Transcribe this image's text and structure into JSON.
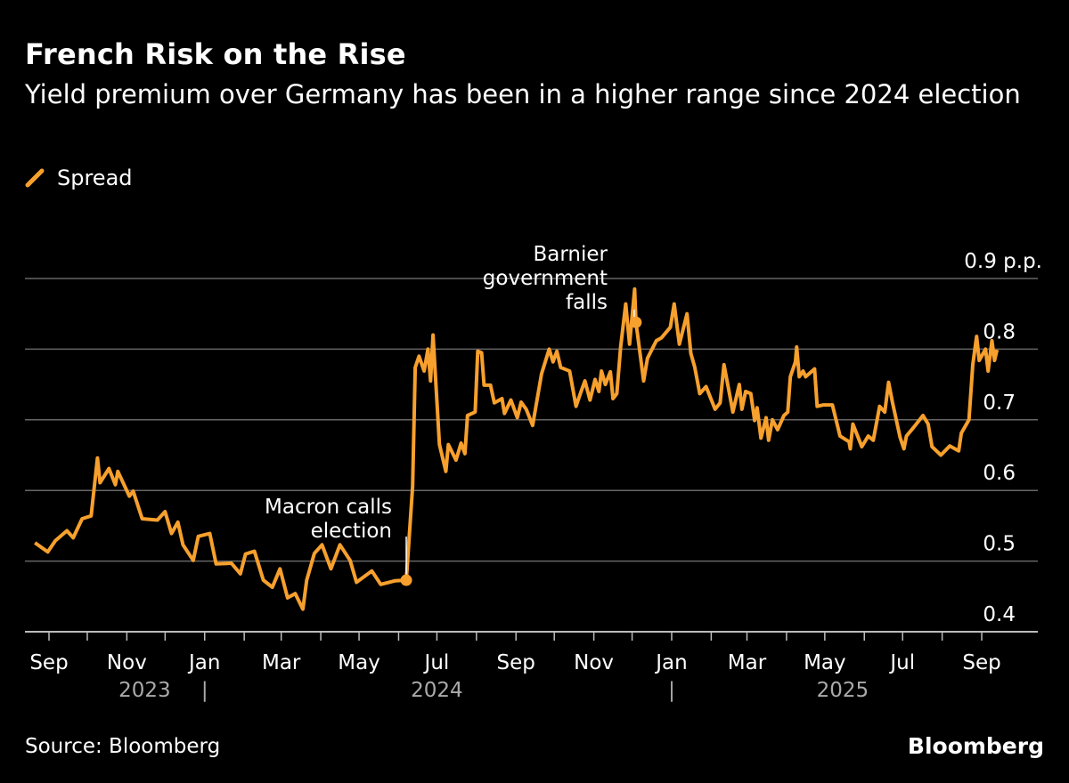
{
  "chart_data": {
    "type": "line",
    "title": "French Risk on the Rise",
    "subtitle": "Yield premium over Germany has been in a higher range since 2024 election",
    "legend": {
      "placement": "top-left",
      "entries": [
        "Spread"
      ]
    },
    "ylabel_unit": "p.p.",
    "ylim": [
      0.4,
      0.9
    ],
    "yticks": [
      {
        "value": 0.9,
        "label": "0.9 p.p."
      },
      {
        "value": 0.8,
        "label": "0.8"
      },
      {
        "value": 0.7,
        "label": "0.7"
      },
      {
        "value": 0.6,
        "label": "0.6"
      },
      {
        "value": 0.5,
        "label": "0.5"
      },
      {
        "value": 0.4,
        "label": "0.4"
      }
    ],
    "grid": true,
    "xticks": [
      {
        "date": "2023-09-01",
        "label": "Sep"
      },
      {
        "date": "2023-10-01",
        "label": ""
      },
      {
        "date": "2023-11-01",
        "label": "Nov"
      },
      {
        "date": "2023-12-01",
        "label": ""
      },
      {
        "date": "2024-01-01",
        "label": "Jan"
      },
      {
        "date": "2024-02-01",
        "label": ""
      },
      {
        "date": "2024-03-01",
        "label": "Mar"
      },
      {
        "date": "2024-04-01",
        "label": ""
      },
      {
        "date": "2024-05-01",
        "label": "May"
      },
      {
        "date": "2024-06-01",
        "label": ""
      },
      {
        "date": "2024-07-01",
        "label": "Jul"
      },
      {
        "date": "2024-08-01",
        "label": ""
      },
      {
        "date": "2024-09-01",
        "label": "Sep"
      },
      {
        "date": "2024-10-01",
        "label": ""
      },
      {
        "date": "2024-11-01",
        "label": "Nov"
      },
      {
        "date": "2024-12-01",
        "label": ""
      },
      {
        "date": "2025-01-01",
        "label": "Jan"
      },
      {
        "date": "2025-02-01",
        "label": ""
      },
      {
        "date": "2025-03-01",
        "label": "Mar"
      },
      {
        "date": "2025-04-01",
        "label": ""
      },
      {
        "date": "2025-05-01",
        "label": "May"
      },
      {
        "date": "2025-06-01",
        "label": ""
      },
      {
        "date": "2025-07-01",
        "label": "Jul"
      },
      {
        "date": "2025-08-01",
        "label": ""
      },
      {
        "date": "2025-09-01",
        "label": "Sep"
      }
    ],
    "years": [
      {
        "label": "2023",
        "date": "2023-11-15"
      },
      {
        "label": "2024",
        "date": "2024-07-01"
      },
      {
        "label": "2025",
        "date": "2025-05-15"
      }
    ],
    "year_separator": "|",
    "series": [
      {
        "name": "Spread",
        "color": "#F7A02D",
        "points": [
          [
            "2023-08-21",
            0.526
          ],
          [
            "2023-08-31",
            0.513
          ],
          [
            "2023-09-06",
            0.529
          ],
          [
            "2023-09-15",
            0.543
          ],
          [
            "2023-09-20",
            0.533
          ],
          [
            "2023-09-27",
            0.56
          ],
          [
            "2023-10-04",
            0.564
          ],
          [
            "2023-10-09",
            0.646
          ],
          [
            "2023-10-11",
            0.611
          ],
          [
            "2023-10-18",
            0.631
          ],
          [
            "2023-10-23",
            0.608
          ],
          [
            "2023-10-25",
            0.627
          ],
          [
            "2023-11-03",
            0.592
          ],
          [
            "2023-11-06",
            0.599
          ],
          [
            "2023-11-13",
            0.56
          ],
          [
            "2023-11-25",
            0.558
          ],
          [
            "2023-12-01",
            0.57
          ],
          [
            "2023-12-06",
            0.539
          ],
          [
            "2023-12-11",
            0.555
          ],
          [
            "2023-12-15",
            0.523
          ],
          [
            "2023-12-23",
            0.501
          ],
          [
            "2023-12-27",
            0.535
          ],
          [
            "2024-01-05",
            0.539
          ],
          [
            "2024-01-10",
            0.496
          ],
          [
            "2024-01-22",
            0.497
          ],
          [
            "2024-01-29",
            0.482
          ],
          [
            "2024-02-02",
            0.51
          ],
          [
            "2024-02-09",
            0.514
          ],
          [
            "2024-02-16",
            0.473
          ],
          [
            "2024-02-23",
            0.463
          ],
          [
            "2024-02-29",
            0.489
          ],
          [
            "2024-03-06",
            0.448
          ],
          [
            "2024-03-12",
            0.454
          ],
          [
            "2024-03-18",
            0.432
          ],
          [
            "2024-03-21",
            0.473
          ],
          [
            "2024-03-27",
            0.511
          ],
          [
            "2024-04-02",
            0.523
          ],
          [
            "2024-04-09",
            0.489
          ],
          [
            "2024-04-16",
            0.523
          ],
          [
            "2024-04-24",
            0.501
          ],
          [
            "2024-04-29",
            0.47
          ],
          [
            "2024-05-11",
            0.486
          ],
          [
            "2024-05-18",
            0.467
          ],
          [
            "2024-05-29",
            0.472
          ],
          [
            "2024-06-07",
            0.473
          ],
          [
            "2024-06-12",
            0.606
          ],
          [
            "2024-06-14",
            0.774
          ],
          [
            "2024-06-17",
            0.79
          ],
          [
            "2024-06-21",
            0.769
          ],
          [
            "2024-06-24",
            0.8
          ],
          [
            "2024-06-26",
            0.755
          ],
          [
            "2024-06-28",
            0.82
          ],
          [
            "2024-07-03",
            0.665
          ],
          [
            "2024-07-08",
            0.627
          ],
          [
            "2024-07-10",
            0.665
          ],
          [
            "2024-07-16",
            0.643
          ],
          [
            "2024-07-20",
            0.667
          ],
          [
            "2024-07-23",
            0.652
          ],
          [
            "2024-07-25",
            0.706
          ],
          [
            "2024-07-31",
            0.711
          ],
          [
            "2024-08-02",
            0.797
          ],
          [
            "2024-08-05",
            0.795
          ],
          [
            "2024-08-07",
            0.749
          ],
          [
            "2024-08-12",
            0.749
          ],
          [
            "2024-08-15",
            0.724
          ],
          [
            "2024-08-21",
            0.73
          ],
          [
            "2024-08-23",
            0.709
          ],
          [
            "2024-08-28",
            0.728
          ],
          [
            "2024-09-02",
            0.703
          ],
          [
            "2024-09-05",
            0.725
          ],
          [
            "2024-09-09",
            0.715
          ],
          [
            "2024-09-14",
            0.692
          ],
          [
            "2024-09-21",
            0.765
          ],
          [
            "2024-09-27",
            0.8
          ],
          [
            "2024-09-30",
            0.782
          ],
          [
            "2024-10-03",
            0.797
          ],
          [
            "2024-10-06",
            0.774
          ],
          [
            "2024-10-13",
            0.769
          ],
          [
            "2024-10-18",
            0.719
          ],
          [
            "2024-10-22",
            0.74
          ],
          [
            "2024-10-25",
            0.755
          ],
          [
            "2024-10-29",
            0.728
          ],
          [
            "2024-11-02",
            0.757
          ],
          [
            "2024-11-05",
            0.74
          ],
          [
            "2024-11-07",
            0.769
          ],
          [
            "2024-11-10",
            0.75
          ],
          [
            "2024-11-14",
            0.768
          ],
          [
            "2024-11-16",
            0.73
          ],
          [
            "2024-11-19",
            0.737
          ],
          [
            "2024-11-22",
            0.803
          ],
          [
            "2024-11-26",
            0.864
          ],
          [
            "2024-11-29",
            0.807
          ],
          [
            "2024-12-03",
            0.885
          ],
          [
            "2024-12-04",
            0.838
          ],
          [
            "2024-12-10",
            0.755
          ],
          [
            "2024-12-13",
            0.787
          ],
          [
            "2024-12-20",
            0.812
          ],
          [
            "2024-12-24",
            0.816
          ],
          [
            "2024-12-31",
            0.831
          ],
          [
            "2025-01-03",
            0.864
          ],
          [
            "2025-01-07",
            0.807
          ],
          [
            "2025-01-13",
            0.85
          ],
          [
            "2025-01-16",
            0.794
          ],
          [
            "2025-01-19",
            0.775
          ],
          [
            "2025-01-23",
            0.737
          ],
          [
            "2025-01-28",
            0.747
          ],
          [
            "2025-02-04",
            0.715
          ],
          [
            "2025-02-08",
            0.724
          ],
          [
            "2025-02-11",
            0.778
          ],
          [
            "2025-02-15",
            0.74
          ],
          [
            "2025-02-18",
            0.711
          ],
          [
            "2025-02-23",
            0.75
          ],
          [
            "2025-02-25",
            0.715
          ],
          [
            "2025-02-28",
            0.74
          ],
          [
            "2025-03-04",
            0.737
          ],
          [
            "2025-03-07",
            0.699
          ],
          [
            "2025-03-09",
            0.717
          ],
          [
            "2025-03-12",
            0.674
          ],
          [
            "2025-03-16",
            0.703
          ],
          [
            "2025-03-18",
            0.671
          ],
          [
            "2025-03-21",
            0.7
          ],
          [
            "2025-03-25",
            0.686
          ],
          [
            "2025-03-30",
            0.706
          ],
          [
            "2025-04-02",
            0.711
          ],
          [
            "2025-04-04",
            0.761
          ],
          [
            "2025-04-08",
            0.782
          ],
          [
            "2025-04-09",
            0.803
          ],
          [
            "2025-04-11",
            0.761
          ],
          [
            "2025-04-14",
            0.769
          ],
          [
            "2025-04-16",
            0.761
          ],
          [
            "2025-04-23",
            0.772
          ],
          [
            "2025-04-25",
            0.719
          ],
          [
            "2025-04-30",
            0.721
          ],
          [
            "2025-05-07",
            0.721
          ],
          [
            "2025-05-13",
            0.677
          ],
          [
            "2025-05-20",
            0.669
          ],
          [
            "2025-05-21",
            0.659
          ],
          [
            "2025-05-23",
            0.694
          ],
          [
            "2025-05-30",
            0.662
          ],
          [
            "2025-06-04",
            0.677
          ],
          [
            "2025-06-08",
            0.671
          ],
          [
            "2025-06-13",
            0.719
          ],
          [
            "2025-06-17",
            0.711
          ],
          [
            "2025-06-20",
            0.753
          ],
          [
            "2025-06-23",
            0.725
          ],
          [
            "2025-06-29",
            0.675
          ],
          [
            "2025-07-02",
            0.659
          ],
          [
            "2025-07-04",
            0.677
          ],
          [
            "2025-07-10",
            0.69
          ],
          [
            "2025-07-17",
            0.706
          ],
          [
            "2025-07-21",
            0.694
          ],
          [
            "2025-07-24",
            0.662
          ],
          [
            "2025-07-31",
            0.65
          ],
          [
            "2025-08-07",
            0.663
          ],
          [
            "2025-08-14",
            0.656
          ],
          [
            "2025-08-16",
            0.681
          ],
          [
            "2025-08-22",
            0.7
          ],
          [
            "2025-08-25",
            0.778
          ],
          [
            "2025-08-28",
            0.818
          ],
          [
            "2025-08-30",
            0.784
          ],
          [
            "2025-09-04",
            0.8
          ],
          [
            "2025-09-06",
            0.769
          ],
          [
            "2025-09-09",
            0.812
          ],
          [
            "2025-09-11",
            0.784
          ],
          [
            "2025-09-13",
            0.799
          ]
        ]
      }
    ],
    "annotations": [
      {
        "lines": [
          "Macron calls",
          "election"
        ],
        "date": "2024-06-07",
        "value": 0.473
      },
      {
        "lines": [
          "Barnier",
          "government",
          "falls"
        ],
        "date": "2024-12-04",
        "value": 0.838
      }
    ],
    "source": "Source: Bloomberg",
    "brand": "Bloomberg"
  }
}
